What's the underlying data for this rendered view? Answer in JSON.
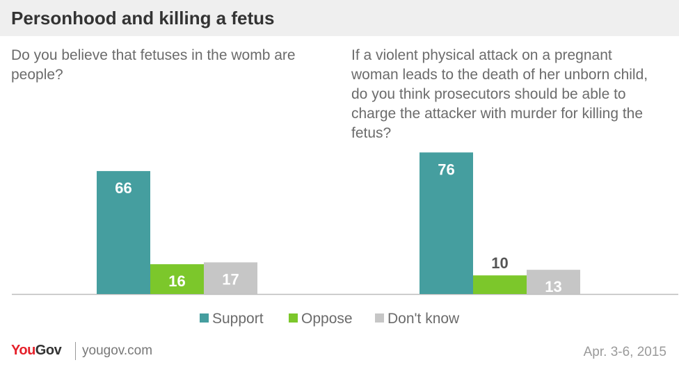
{
  "title": "Personhood and killing a fetus",
  "colors": {
    "support": "#459e9f",
    "oppose": "#7cc72b",
    "dont_know": "#c6c6c6",
    "title_bar": "#efefef",
    "axis": "#bbbbbb"
  },
  "chart_data": {
    "type": "bar",
    "title": "Personhood and killing a fetus",
    "xlabel": "",
    "ylabel": "",
    "ylim": [
      0,
      80
    ],
    "grid": false,
    "legend_position": "bottom",
    "categories": [
      "Do you believe that fetuses in the womb are people?",
      "If a violent physical attack on a pregnant woman leads to the death of her unborn child, do you think prosecutors should be able to charge the attacker with murder for killing the fetus?"
    ],
    "series": [
      {
        "name": "Support",
        "values": [
          66,
          76
        ]
      },
      {
        "name": "Oppose",
        "values": [
          16,
          10
        ]
      },
      {
        "name": "Don't know",
        "values": [
          17,
          13
        ]
      }
    ]
  },
  "footer": {
    "logo_you": "You",
    "logo_gov": "Gov",
    "site": "yougov.com",
    "date": "Apr. 3-6, 2015"
  }
}
